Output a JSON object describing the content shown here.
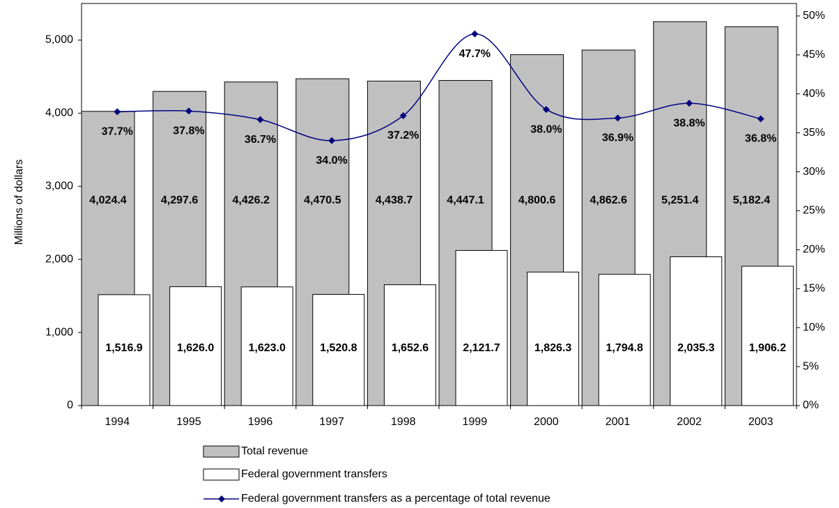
{
  "chart_data": {
    "type": "bar",
    "y_label": "Millions of dollars",
    "categories": [
      "1994",
      "1995",
      "1996",
      "1997",
      "1998",
      "1999",
      "2000",
      "2001",
      "2002",
      "2003"
    ],
    "ylim": [
      0,
      5500
    ],
    "yticks": [
      0,
      {
        "value": 1000,
        "label": "1,000"
      },
      {
        "value": 2000,
        "label": "2,000"
      },
      {
        "value": 3000,
        "label": "3,000"
      },
      {
        "value": 4000,
        "label": "4,000"
      },
      {
        "value": 5000,
        "label": "5,000"
      }
    ],
    "y2lim": [
      0,
      51.6
    ],
    "y2ticks": [
      {
        "value": 0,
        "label": "0%"
      },
      {
        "value": 5,
        "label": "5%"
      },
      {
        "value": 10,
        "label": "10%"
      },
      {
        "value": 15,
        "label": "15%"
      },
      {
        "value": 20,
        "label": "20%"
      },
      {
        "value": 25,
        "label": "25%"
      },
      {
        "value": 30,
        "label": "30%"
      },
      {
        "value": 35,
        "label": "35%"
      },
      {
        "value": 40,
        "label": "40%"
      },
      {
        "value": 45,
        "label": "45%"
      },
      {
        "value": 50,
        "label": "50%"
      }
    ],
    "series": [
      {
        "name": "Total revenue",
        "type": "bar",
        "color": "#c0c0c0",
        "values": [
          4024.4,
          4297.6,
          4426.2,
          4470.5,
          4438.7,
          4447.1,
          4800.6,
          4862.6,
          5251.4,
          5182.4
        ],
        "value_labels": [
          "4,024.4",
          "4,297.6",
          "4,426.2",
          "4,470.5",
          "4,438.7",
          "4,447.1",
          "4,800.6",
          "4,862.6",
          "5,251.4",
          "5,182.4"
        ]
      },
      {
        "name": "Federal government transfers",
        "type": "bar",
        "color": "#ffffff",
        "values": [
          1516.9,
          1626.0,
          1623.0,
          1520.8,
          1652.6,
          2121.7,
          1826.3,
          1794.8,
          2035.3,
          1906.2
        ],
        "value_labels": [
          "1,516.9",
          "1,626.0",
          "1,623.0",
          "1,520.8",
          "1,652.6",
          "2,121.7",
          "1,826.3",
          "1,794.8",
          "2,035.3",
          "1,906.2"
        ]
      },
      {
        "name": "Federal government transfers as a percentage of total revenue",
        "type": "line",
        "axis": "y2",
        "color": "#000080",
        "values": [
          37.7,
          37.8,
          36.7,
          34.0,
          37.2,
          47.7,
          38.0,
          36.9,
          38.8,
          36.8
        ],
        "value_labels": [
          "37.7%",
          "37.8%",
          "36.7%",
          "34.0%",
          "37.2%",
          "47.7%",
          "38.0%",
          "36.9%",
          "38.8%",
          "36.8%"
        ]
      }
    ]
  }
}
